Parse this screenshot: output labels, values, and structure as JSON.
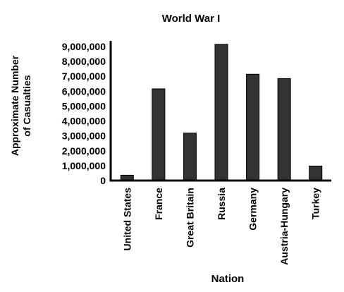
{
  "chart_data": {
    "type": "bar",
    "title": "World War I",
    "xlabel": "Nation",
    "ylabel_lines": [
      "Approximate Number",
      "of Casualties"
    ],
    "categories": [
      "United States",
      "France",
      "Great Britain",
      "Russia",
      "Germany",
      "Austria-Hungary",
      "Turkey"
    ],
    "values": [
      360000,
      6160000,
      3190000,
      9150000,
      7140000,
      6850000,
      975000
    ],
    "ylim": [
      0,
      9000000
    ],
    "yticks": [
      0,
      1000000,
      2000000,
      3000000,
      4000000,
      5000000,
      6000000,
      7000000,
      8000000,
      9000000
    ],
    "ytick_labels": [
      "0",
      "1,000,000",
      "2,000,000",
      "3,000,000",
      "4,000,000",
      "5,000,000",
      "6,000,000",
      "7,000,000",
      "8,000,000",
      "9,000,000"
    ],
    "bar_color": "#333333",
    "axis_color": "#000000",
    "grid": false,
    "legend": "none"
  }
}
